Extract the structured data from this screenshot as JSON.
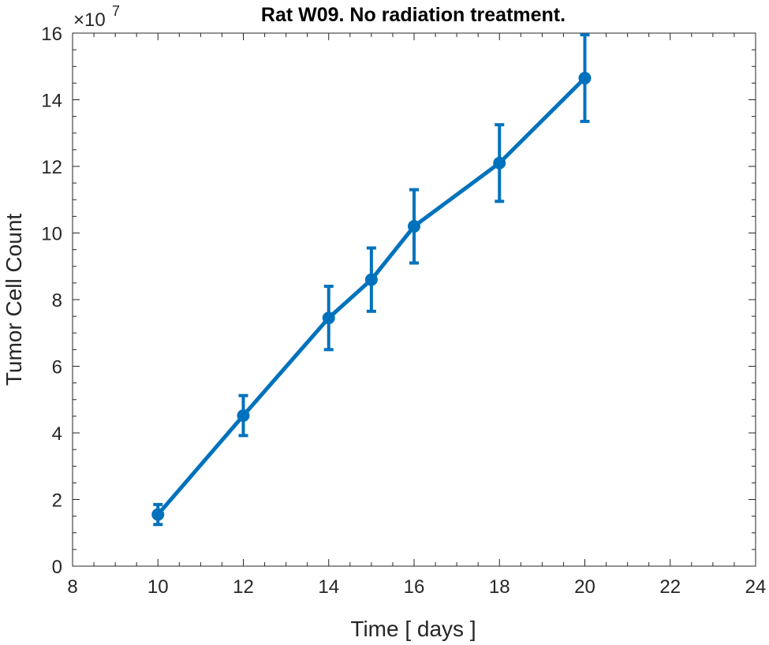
{
  "chart_data": {
    "type": "line",
    "title": "Rat W09. No radiation treatment.",
    "xlabel": "Time [ days ]",
    "ylabel": "Tumor Cell Count",
    "xlim": [
      8,
      24
    ],
    "ylim": [
      0,
      16
    ],
    "xticks": [
      "8",
      "10",
      "12",
      "14",
      "16",
      "18",
      "20",
      "22",
      "24"
    ],
    "yticks": [
      "0",
      "2",
      "4",
      "6",
      "8",
      "10",
      "12",
      "14",
      "16"
    ],
    "y_exponent": {
      "base": "×10",
      "power": "7"
    },
    "grid": false,
    "series": [
      {
        "name": "Tumor Cell Count",
        "color": "#0072BD",
        "marker": "circle",
        "x": [
          10,
          12,
          14,
          15,
          16,
          18,
          20
        ],
        "y": [
          1.55,
          4.52,
          7.45,
          8.6,
          10.2,
          12.1,
          14.65
        ],
        "err_low": [
          0.3,
          0.6,
          0.95,
          0.95,
          1.1,
          1.15,
          1.3
        ],
        "err_high": [
          0.3,
          0.6,
          0.95,
          0.95,
          1.1,
          1.15,
          1.3
        ]
      }
    ]
  }
}
